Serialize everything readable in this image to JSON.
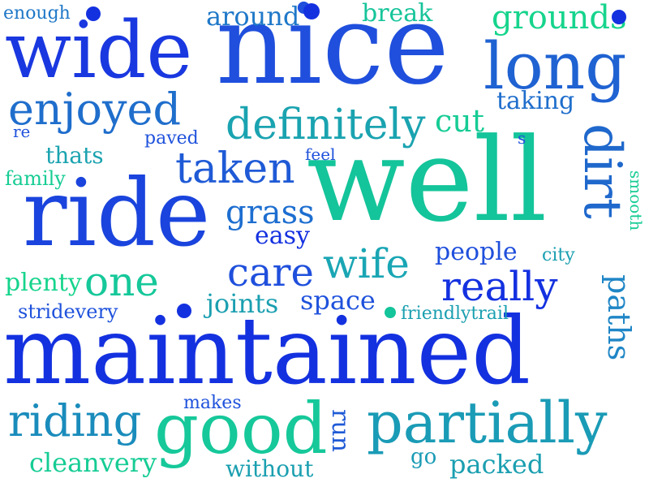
{
  "palette": {
    "deep_blue": "#1431e0",
    "blue": "#1f5ad6",
    "teal_blue": "#1d82c4",
    "teal": "#1a9fb0",
    "sea_green": "#14c49a",
    "mint": "#16d48c"
  },
  "words": [
    {
      "id": "maintained",
      "text": "maintained",
      "color": "#1431e0"
    },
    {
      "id": "well",
      "text": "well",
      "color": "#14c49a"
    },
    {
      "id": "nice",
      "text": "nice",
      "color": "#1f4fdc"
    },
    {
      "id": "ride",
      "text": "ride",
      "color": "#1a44dd"
    },
    {
      "id": "wide",
      "text": "wide",
      "color": "#1a38e0"
    },
    {
      "id": "good",
      "text": "good",
      "color": "#16c89a"
    },
    {
      "id": "partially",
      "text": "partially",
      "color": "#1a9bb6"
    },
    {
      "id": "long",
      "text": "long",
      "color": "#1f62d2"
    },
    {
      "id": "dirt",
      "text": "dirt",
      "color": "#1f68cc"
    },
    {
      "id": "enjoyed",
      "text": "enjoyed",
      "color": "#1f6ecc"
    },
    {
      "id": "definitely",
      "text": "definitely",
      "color": "#1aa3b0"
    },
    {
      "id": "riding",
      "text": "riding",
      "color": "#1a8cbc"
    },
    {
      "id": "taken",
      "text": "taken",
      "color": "#1f5ad6"
    },
    {
      "id": "wife",
      "text": "wife",
      "color": "#1aa6b4"
    },
    {
      "id": "care",
      "text": "care",
      "color": "#1f4fdc"
    },
    {
      "id": "really",
      "text": "really",
      "color": "#1431e0"
    },
    {
      "id": "one",
      "text": "one",
      "color": "#16c89a"
    },
    {
      "id": "grass",
      "text": "grass",
      "color": "#1d6ed0"
    },
    {
      "id": "grounds",
      "text": "grounds",
      "color": "#16d48c"
    },
    {
      "id": "paths",
      "text": "paths",
      "color": "#1f86c6"
    },
    {
      "id": "around",
      "text": "around",
      "color": "#1f78c8"
    },
    {
      "id": "cut",
      "text": "cut",
      "color": "#16cc94"
    },
    {
      "id": "easy",
      "text": "easy",
      "color": "#1431e0"
    },
    {
      "id": "joints",
      "text": "joints",
      "color": "#1a9fb0"
    },
    {
      "id": "space",
      "text": "space",
      "color": "#1f52dc"
    },
    {
      "id": "cleanvery",
      "text": "cleanvery",
      "color": "#16cc94"
    },
    {
      "id": "without",
      "text": "without",
      "color": "#1a9fb0"
    },
    {
      "id": "packed",
      "text": "packed",
      "color": "#1a9fb0"
    },
    {
      "id": "run",
      "text": "run",
      "color": "#1f5ad6"
    },
    {
      "id": "taking",
      "text": "taking",
      "color": "#1f6ecc"
    },
    {
      "id": "break",
      "text": "break",
      "color": "#16c49a"
    },
    {
      "id": "plenty",
      "text": "plenty",
      "color": "#16d48c"
    },
    {
      "id": "people",
      "text": "people",
      "color": "#1f4fdc"
    },
    {
      "id": "thats",
      "text": "thats",
      "color": "#1aa3b0"
    },
    {
      "id": "stridevery",
      "text": "stridevery",
      "color": "#1f52dc"
    },
    {
      "id": "friendlytrail",
      "text": "friendlytrail",
      "color": "#1a9fb0"
    },
    {
      "id": "family",
      "text": "family",
      "color": "#16cc94"
    },
    {
      "id": "enough",
      "text": "enough",
      "color": "#1f78c8"
    },
    {
      "id": "paved",
      "text": "paved",
      "color": "#1f52dc"
    },
    {
      "id": "feel",
      "text": "feel",
      "color": "#1f52dc"
    },
    {
      "id": "makes",
      "text": "makes",
      "color": "#1f52dc"
    },
    {
      "id": "go",
      "text": "go",
      "color": "#1a9bb6"
    },
    {
      "id": "city",
      "text": "city",
      "color": "#1a9fb0"
    },
    {
      "id": "smooth",
      "text": "smooth",
      "color": "#16cc94"
    },
    {
      "id": "re",
      "text": "re",
      "color": "#1f52dc"
    },
    {
      "id": "s",
      "text": "s",
      "color": "#1f52dc"
    }
  ],
  "dots": [
    {
      "id": "dot-1",
      "color": "#1431e0"
    },
    {
      "id": "dot-2",
      "color": "#1431e0"
    },
    {
      "id": "dot-3",
      "color": "#1431e0"
    },
    {
      "id": "dot-4",
      "color": "#1431e0"
    },
    {
      "id": "dot-5",
      "color": "#14c49a"
    }
  ]
}
